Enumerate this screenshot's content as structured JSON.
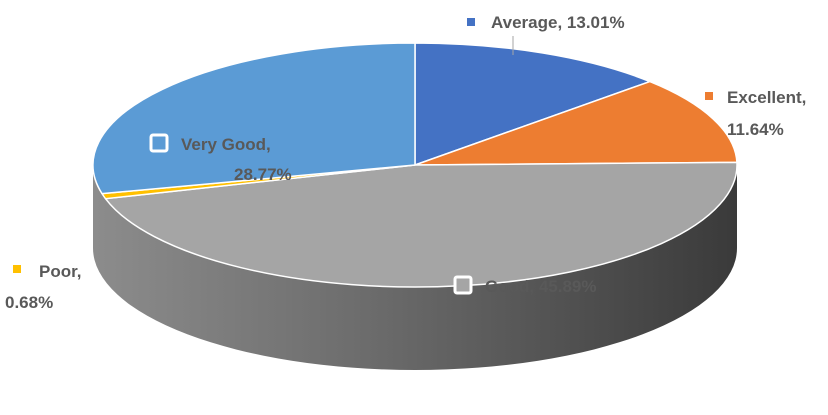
{
  "chart_data": {
    "type": "pie",
    "style": "3d",
    "categories": [
      "Average",
      "Excellent",
      "Good",
      "Poor",
      "Very Good"
    ],
    "values": [
      13.01,
      11.64,
      45.89,
      0.68,
      28.77
    ],
    "colors": [
      "#4472C4",
      "#ED7D31",
      "#A5A5A5",
      "#FFC000",
      "#5B9BD5"
    ],
    "data_labels": [
      {
        "lines": [
          "Average, 13.01%"
        ]
      },
      {
        "lines": [
          "Excellent,",
          "11.64%"
        ]
      },
      {
        "lines": [
          "Good, 45.89%"
        ]
      },
      {
        "lines": [
          "Poor,",
          "0.68%"
        ]
      },
      {
        "lines": [
          "Very Good,",
          "28.77%"
        ]
      }
    ],
    "start_angle_deg": 0,
    "direction": "clockwise",
    "legend": "none"
  }
}
